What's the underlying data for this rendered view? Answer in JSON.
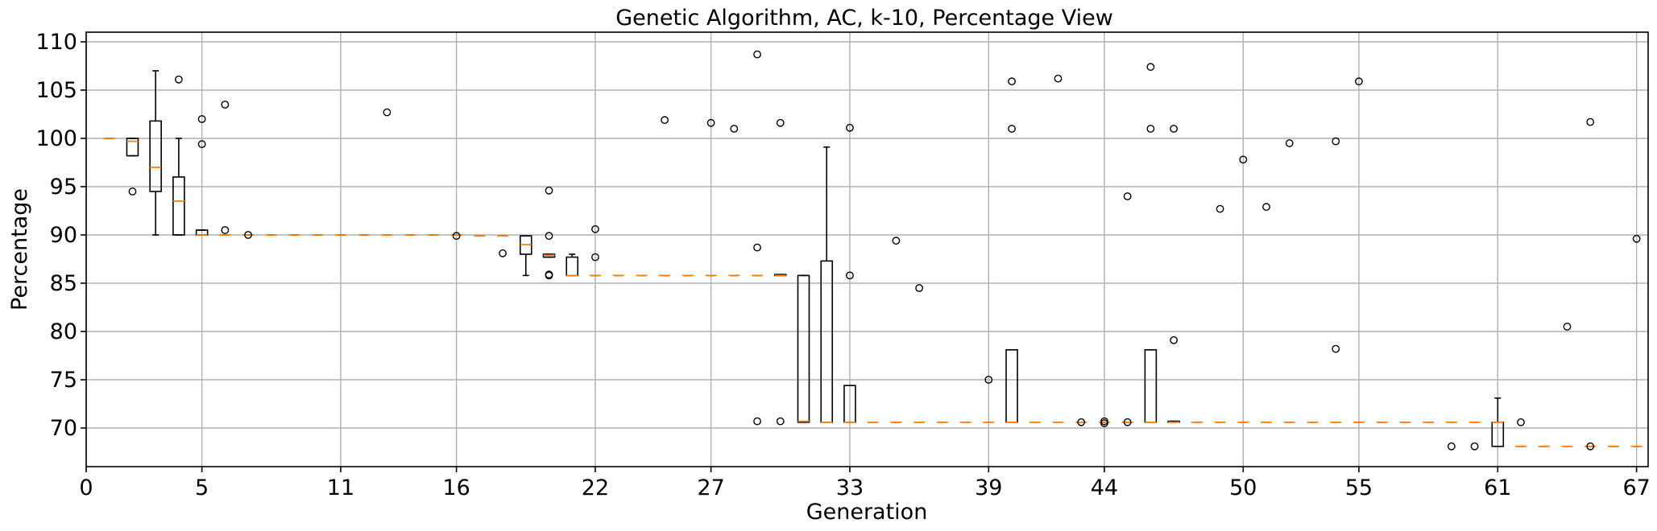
{
  "chart_data": {
    "type": "box",
    "title": "Genetic Algorithm, AC, k-10, Percentage View",
    "xlabel": "Generation",
    "ylabel": "Percentage",
    "xlim": [
      0,
      67.5
    ],
    "ylim": [
      66,
      111
    ],
    "xticks": [
      0,
      5,
      11,
      16,
      22,
      27,
      33,
      39,
      44,
      50,
      55,
      61,
      67
    ],
    "yticks": [
      70,
      75,
      80,
      85,
      90,
      95,
      100,
      105,
      110
    ],
    "grid": true,
    "boxes": [
      {
        "x": 1,
        "q1": 100,
        "median": 100,
        "q3": 100,
        "lo": 100,
        "hi": 100,
        "fliers": []
      },
      {
        "x": 2,
        "q1": 98.2,
        "median": 99.7,
        "q3": 100,
        "lo": 98.2,
        "hi": 100,
        "fliers": [
          94.5
        ]
      },
      {
        "x": 3,
        "q1": 94.5,
        "median": 97,
        "q3": 101.8,
        "lo": 90,
        "hi": 107,
        "fliers": []
      },
      {
        "x": 4,
        "q1": 90,
        "median": 93.5,
        "q3": 96,
        "lo": 90,
        "hi": 100,
        "fliers": [
          106.1
        ]
      },
      {
        "x": 5,
        "q1": 90,
        "median": 90,
        "q3": 90.5,
        "lo": 90,
        "hi": 90.5,
        "fliers": [
          102,
          99.4
        ]
      },
      {
        "x": 6,
        "q1": 90,
        "median": 90,
        "q3": 90,
        "lo": 90,
        "hi": 90,
        "fliers": [
          103.5,
          90.5
        ]
      },
      {
        "x": 7,
        "q1": 90,
        "median": 90,
        "q3": 90,
        "lo": 90,
        "hi": 90,
        "fliers": [
          90
        ]
      },
      {
        "x": 8,
        "q1": 90,
        "median": 90,
        "q3": 90,
        "lo": 90,
        "hi": 90,
        "fliers": []
      },
      {
        "x": 9,
        "q1": 90,
        "median": 90,
        "q3": 90,
        "lo": 90,
        "hi": 90,
        "fliers": []
      },
      {
        "x": 10,
        "q1": 90,
        "median": 90,
        "q3": 90,
        "lo": 90,
        "hi": 90,
        "fliers": []
      },
      {
        "x": 11,
        "q1": 90,
        "median": 90,
        "q3": 90,
        "lo": 90,
        "hi": 90,
        "fliers": []
      },
      {
        "x": 12,
        "q1": 90,
        "median": 90,
        "q3": 90,
        "lo": 90,
        "hi": 90,
        "fliers": []
      },
      {
        "x": 13,
        "q1": 90,
        "median": 90,
        "q3": 90,
        "lo": 90,
        "hi": 90,
        "fliers": [
          102.7
        ]
      },
      {
        "x": 14,
        "q1": 90,
        "median": 90,
        "q3": 90,
        "lo": 90,
        "hi": 90,
        "fliers": []
      },
      {
        "x": 15,
        "q1": 90,
        "median": 90,
        "q3": 90,
        "lo": 90,
        "hi": 90,
        "fliers": []
      },
      {
        "x": 16,
        "q1": 90,
        "median": 90,
        "q3": 90,
        "lo": 90,
        "hi": 90,
        "fliers": [
          89.9
        ]
      },
      {
        "x": 17,
        "q1": 89.9,
        "median": 89.9,
        "q3": 89.9,
        "lo": 89.9,
        "hi": 89.9,
        "fliers": []
      },
      {
        "x": 18,
        "q1": 89.9,
        "median": 89.9,
        "q3": 89.9,
        "lo": 89.9,
        "hi": 89.9,
        "fliers": [
          88.1
        ]
      },
      {
        "x": 19,
        "q1": 88,
        "median": 89,
        "q3": 89.9,
        "lo": 85.8,
        "hi": 89.9,
        "fliers": []
      },
      {
        "x": 20,
        "q1": 87.7,
        "median": 87.9,
        "q3": 88,
        "lo": 87.7,
        "hi": 88,
        "fliers": [
          94.6,
          89.9,
          85.8,
          85.9
        ]
      },
      {
        "x": 21,
        "q1": 85.8,
        "median": 85.8,
        "q3": 87.7,
        "lo": 85.8,
        "hi": 88,
        "fliers": []
      },
      {
        "x": 22,
        "q1": 85.8,
        "median": 85.8,
        "q3": 85.8,
        "lo": 85.8,
        "hi": 85.8,
        "fliers": [
          90.6,
          87.7
        ]
      },
      {
        "x": 23,
        "q1": 85.8,
        "median": 85.8,
        "q3": 85.8,
        "lo": 85.8,
        "hi": 85.8,
        "fliers": []
      },
      {
        "x": 24,
        "q1": 85.8,
        "median": 85.8,
        "q3": 85.8,
        "lo": 85.8,
        "hi": 85.8,
        "fliers": []
      },
      {
        "x": 25,
        "q1": 85.8,
        "median": 85.8,
        "q3": 85.8,
        "lo": 85.8,
        "hi": 85.8,
        "fliers": [
          101.9
        ]
      },
      {
        "x": 26,
        "q1": 85.8,
        "median": 85.8,
        "q3": 85.8,
        "lo": 85.8,
        "hi": 85.8,
        "fliers": []
      },
      {
        "x": 27,
        "q1": 85.8,
        "median": 85.8,
        "q3": 85.8,
        "lo": 85.8,
        "hi": 85.8,
        "fliers": [
          101.6
        ]
      },
      {
        "x": 28,
        "q1": 85.8,
        "median": 85.8,
        "q3": 85.8,
        "lo": 85.8,
        "hi": 85.8,
        "fliers": [
          101
        ]
      },
      {
        "x": 29,
        "q1": 85.8,
        "median": 85.8,
        "q3": 85.8,
        "lo": 85.8,
        "hi": 85.8,
        "fliers": [
          108.7,
          88.7,
          70.7
        ]
      },
      {
        "x": 30,
        "q1": 85.8,
        "median": 85.8,
        "q3": 85.9,
        "lo": 85.8,
        "hi": 85.9,
        "fliers": [
          101.6,
          70.7
        ]
      },
      {
        "x": 31,
        "q1": 70.6,
        "median": 70.7,
        "q3": 85.8,
        "lo": 70.6,
        "hi": 85.8,
        "fliers": []
      },
      {
        "x": 32,
        "q1": 70.6,
        "median": 70.6,
        "q3": 87.3,
        "lo": 70.6,
        "hi": 99.1,
        "fliers": []
      },
      {
        "x": 33,
        "q1": 70.6,
        "median": 70.6,
        "q3": 74.4,
        "lo": 70.6,
        "hi": 74.4,
        "fliers": [
          101.1,
          85.8
        ]
      },
      {
        "x": 34,
        "q1": 70.6,
        "median": 70.6,
        "q3": 70.6,
        "lo": 70.6,
        "hi": 70.6,
        "fliers": []
      },
      {
        "x": 35,
        "q1": 70.6,
        "median": 70.6,
        "q3": 70.6,
        "lo": 70.6,
        "hi": 70.6,
        "fliers": [
          89.4
        ]
      },
      {
        "x": 36,
        "q1": 70.6,
        "median": 70.6,
        "q3": 70.6,
        "lo": 70.6,
        "hi": 70.6,
        "fliers": [
          84.5
        ]
      },
      {
        "x": 37,
        "q1": 70.6,
        "median": 70.6,
        "q3": 70.6,
        "lo": 70.6,
        "hi": 70.6,
        "fliers": []
      },
      {
        "x": 38,
        "q1": 70.6,
        "median": 70.6,
        "q3": 70.6,
        "lo": 70.6,
        "hi": 70.6,
        "fliers": []
      },
      {
        "x": 39,
        "q1": 70.6,
        "median": 70.6,
        "q3": 70.6,
        "lo": 70.6,
        "hi": 70.6,
        "fliers": [
          75
        ]
      },
      {
        "x": 40,
        "q1": 70.6,
        "median": 70.6,
        "q3": 78.1,
        "lo": 70.6,
        "hi": 78.1,
        "fliers": [
          105.9,
          101
        ]
      },
      {
        "x": 41,
        "q1": 70.6,
        "median": 70.6,
        "q3": 70.6,
        "lo": 70.6,
        "hi": 70.6,
        "fliers": []
      },
      {
        "x": 42,
        "q1": 70.6,
        "median": 70.6,
        "q3": 70.6,
        "lo": 70.6,
        "hi": 70.6,
        "fliers": [
          106.2
        ]
      },
      {
        "x": 43,
        "q1": 70.6,
        "median": 70.6,
        "q3": 70.6,
        "lo": 70.6,
        "hi": 70.6,
        "fliers": [
          70.6
        ]
      },
      {
        "x": 44,
        "q1": 70.6,
        "median": 70.6,
        "q3": 70.6,
        "lo": 70.6,
        "hi": 70.6,
        "fliers": [
          70.5,
          70.7
        ]
      },
      {
        "x": 45,
        "q1": 70.6,
        "median": 70.6,
        "q3": 70.6,
        "lo": 70.6,
        "hi": 70.6,
        "fliers": [
          94,
          70.6
        ]
      },
      {
        "x": 46,
        "q1": 70.6,
        "median": 70.6,
        "q3": 78.1,
        "lo": 70.6,
        "hi": 78.1,
        "fliers": [
          107.4,
          101
        ]
      },
      {
        "x": 47,
        "q1": 70.6,
        "median": 70.6,
        "q3": 70.7,
        "lo": 70.6,
        "hi": 70.7,
        "fliers": [
          101,
          79.1
        ]
      },
      {
        "x": 48,
        "q1": 70.6,
        "median": 70.6,
        "q3": 70.6,
        "lo": 70.6,
        "hi": 70.6,
        "fliers": []
      },
      {
        "x": 49,
        "q1": 70.6,
        "median": 70.6,
        "q3": 70.6,
        "lo": 70.6,
        "hi": 70.6,
        "fliers": [
          92.7
        ]
      },
      {
        "x": 50,
        "q1": 70.6,
        "median": 70.6,
        "q3": 70.6,
        "lo": 70.6,
        "hi": 70.6,
        "fliers": [
          97.8
        ]
      },
      {
        "x": 51,
        "q1": 70.6,
        "median": 70.6,
        "q3": 70.6,
        "lo": 70.6,
        "hi": 70.6,
        "fliers": [
          92.9
        ]
      },
      {
        "x": 52,
        "q1": 70.6,
        "median": 70.6,
        "q3": 70.6,
        "lo": 70.6,
        "hi": 70.6,
        "fliers": [
          99.5
        ]
      },
      {
        "x": 53,
        "q1": 70.6,
        "median": 70.6,
        "q3": 70.6,
        "lo": 70.6,
        "hi": 70.6,
        "fliers": []
      },
      {
        "x": 54,
        "q1": 70.6,
        "median": 70.6,
        "q3": 70.6,
        "lo": 70.6,
        "hi": 70.6,
        "fliers": [
          99.7,
          78.2
        ]
      },
      {
        "x": 55,
        "q1": 70.6,
        "median": 70.6,
        "q3": 70.6,
        "lo": 70.6,
        "hi": 70.6,
        "fliers": [
          105.9
        ]
      },
      {
        "x": 56,
        "q1": 70.6,
        "median": 70.6,
        "q3": 70.6,
        "lo": 70.6,
        "hi": 70.6,
        "fliers": []
      },
      {
        "x": 57,
        "q1": 70.6,
        "median": 70.6,
        "q3": 70.6,
        "lo": 70.6,
        "hi": 70.6,
        "fliers": []
      },
      {
        "x": 58,
        "q1": 70.6,
        "median": 70.6,
        "q3": 70.6,
        "lo": 70.6,
        "hi": 70.6,
        "fliers": []
      },
      {
        "x": 59,
        "q1": 70.6,
        "median": 70.6,
        "q3": 70.6,
        "lo": 70.6,
        "hi": 70.6,
        "fliers": [
          68.1
        ]
      },
      {
        "x": 60,
        "q1": 70.6,
        "median": 70.6,
        "q3": 70.6,
        "lo": 70.6,
        "hi": 70.6,
        "fliers": [
          68.1
        ]
      },
      {
        "x": 61,
        "q1": 68.1,
        "median": 70.6,
        "q3": 70.6,
        "lo": 68.1,
        "hi": 73.1,
        "fliers": []
      },
      {
        "x": 62,
        "q1": 68.1,
        "median": 68.1,
        "q3": 68.1,
        "lo": 68.1,
        "hi": 68.1,
        "fliers": [
          70.6
        ]
      },
      {
        "x": 63,
        "q1": 68.1,
        "median": 68.1,
        "q3": 68.1,
        "lo": 68.1,
        "hi": 68.1,
        "fliers": []
      },
      {
        "x": 64,
        "q1": 68.1,
        "median": 68.1,
        "q3": 68.1,
        "lo": 68.1,
        "hi": 68.1,
        "fliers": [
          80.5
        ]
      },
      {
        "x": 65,
        "q1": 68.1,
        "median": 68.1,
        "q3": 68.1,
        "lo": 68.1,
        "hi": 68.1,
        "fliers": [
          101.7,
          68.1
        ]
      },
      {
        "x": 66,
        "q1": 68.1,
        "median": 68.1,
        "q3": 68.1,
        "lo": 68.1,
        "hi": 68.1,
        "fliers": []
      },
      {
        "x": 67,
        "q1": 68.1,
        "median": 68.1,
        "q3": 68.1,
        "lo": 68.1,
        "hi": 68.1,
        "fliers": [
          89.6
        ]
      }
    ],
    "colors": {
      "box": "#000000",
      "median": "#ff7f0e",
      "grid": "#b0b0b0"
    }
  }
}
